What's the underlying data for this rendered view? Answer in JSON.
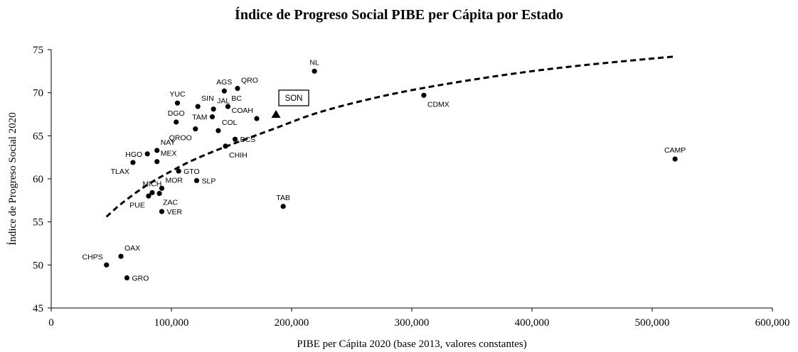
{
  "chart_data": {
    "type": "scatter",
    "title": "Índice de Progreso Social PIBE per Cápita por Estado",
    "xlabel": "PIBE per Cápita 2020 (base 2013, valores constantes)",
    "ylabel": "Índice de Progreso Social 2020",
    "xlim": [
      0,
      600000
    ],
    "ylim": [
      45,
      75
    ],
    "x_ticks": [
      0,
      100000,
      200000,
      300000,
      400000,
      500000,
      600000
    ],
    "x_tick_labels": [
      "0",
      "100,000",
      "200,000",
      "300,000",
      "400,000",
      "500,000",
      "600,000"
    ],
    "y_ticks": [
      45,
      50,
      55,
      60,
      65,
      70,
      75
    ],
    "y_tick_labels": [
      "45",
      "50",
      "55",
      "60",
      "65",
      "70",
      "75"
    ],
    "grid": false,
    "legend": "none",
    "marker_color": "#000000",
    "trend_line": {
      "style": "dashed",
      "color": "#000000",
      "x_range": [
        46000,
        518000
      ],
      "curve": [
        [
          46000,
          55.6
        ],
        [
          60000,
          57.3
        ],
        [
          80000,
          59.3
        ],
        [
          100000,
          60.9
        ],
        [
          120000,
          62.3
        ],
        [
          150000,
          64.0
        ],
        [
          187000,
          65.9
        ],
        [
          220000,
          67.6
        ],
        [
          260000,
          69.1
        ],
        [
          300000,
          70.3
        ],
        [
          350000,
          71.5
        ],
        [
          400000,
          72.5
        ],
        [
          450000,
          73.3
        ],
        [
          518000,
          74.2
        ]
      ]
    },
    "highlight": {
      "label": "SON",
      "x": 187000,
      "y": 67.5,
      "marker": "triangle"
    },
    "points": [
      {
        "label": "NL",
        "x": 219000,
        "y": 72.5,
        "pos": "above"
      },
      {
        "label": "AGS",
        "x": 144000,
        "y": 70.2,
        "pos": "above"
      },
      {
        "label": "QRO",
        "x": 155000,
        "y": 70.5,
        "pos": "above-right"
      },
      {
        "label": "YUC",
        "x": 105000,
        "y": 68.8,
        "pos": "above"
      },
      {
        "label": "SIN",
        "x": 122000,
        "y": 68.4,
        "pos": "above-right"
      },
      {
        "label": "JAL",
        "x": 135000,
        "y": 68.1,
        "pos": "above-right"
      },
      {
        "label": "BC",
        "x": 147000,
        "y": 68.4,
        "pos": "above-right"
      },
      {
        "label": "COAH",
        "x": 171000,
        "y": 67.0,
        "pos": "above-left"
      },
      {
        "label": "CDMX",
        "x": 310000,
        "y": 69.7,
        "pos": "below-right"
      },
      {
        "label": "DGO",
        "x": 104000,
        "y": 66.6,
        "pos": "above"
      },
      {
        "label": "TAM",
        "x": 134000,
        "y": 67.2,
        "pos": "left"
      },
      {
        "label": "QROO",
        "x": 120000,
        "y": 65.8,
        "pos": "below-left"
      },
      {
        "label": "COL",
        "x": 139000,
        "y": 65.6,
        "pos": "above-right"
      },
      {
        "label": "BCS",
        "x": 153000,
        "y": 64.6,
        "pos": "right"
      },
      {
        "label": "CHIH",
        "x": 145000,
        "y": 63.8,
        "pos": "below-right"
      },
      {
        "label": "HGO",
        "x": 80000,
        "y": 62.9,
        "pos": "left"
      },
      {
        "label": "NAY",
        "x": 88000,
        "y": 63.3,
        "pos": "above-right"
      },
      {
        "label": "MEX",
        "x": 88000,
        "y": 62.0,
        "pos": "above-right"
      },
      {
        "label": "TLAX",
        "x": 68000,
        "y": 61.9,
        "pos": "below-left"
      },
      {
        "label": "GTO",
        "x": 106000,
        "y": 60.9,
        "pos": "right"
      },
      {
        "label": "SLP",
        "x": 121000,
        "y": 59.8,
        "pos": "right"
      },
      {
        "label": "MICH",
        "x": 84000,
        "y": 58.4,
        "pos": "above"
      },
      {
        "label": "MOR",
        "x": 92000,
        "y": 58.9,
        "pos": "above-right"
      },
      {
        "label": "PUE",
        "x": 81000,
        "y": 58.0,
        "pos": "below-left"
      },
      {
        "label": "ZAC",
        "x": 90000,
        "y": 58.3,
        "pos": "below-right"
      },
      {
        "label": "VER",
        "x": 92000,
        "y": 56.2,
        "pos": "right"
      },
      {
        "label": "TAB",
        "x": 193000,
        "y": 56.8,
        "pos": "above"
      },
      {
        "label": "CAMP",
        "x": 519000,
        "y": 62.3,
        "pos": "above"
      },
      {
        "label": "OAX",
        "x": 58000,
        "y": 51.0,
        "pos": "above-right"
      },
      {
        "label": "CHPS",
        "x": 46000,
        "y": 50.0,
        "pos": "above-left"
      },
      {
        "label": "GRO",
        "x": 63000,
        "y": 48.5,
        "pos": "right"
      }
    ]
  }
}
